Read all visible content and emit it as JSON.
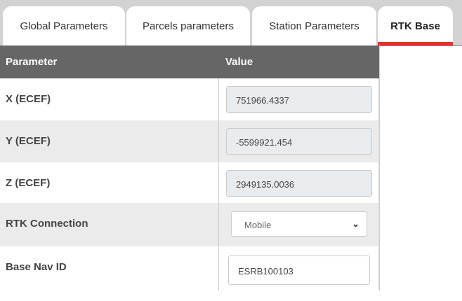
{
  "tabs": [
    {
      "label": "Global Parameters"
    },
    {
      "label": "Parcels parameters"
    },
    {
      "label": "Station Parameters"
    },
    {
      "label": "RTK Base",
      "active": true
    }
  ],
  "accent_color": "#d9372b",
  "table": {
    "headers": {
      "parameter": "Parameter",
      "value": "Value"
    },
    "rows": [
      {
        "label": "X (ECEF)",
        "value": "751966.4337"
      },
      {
        "label": "Y (ECEF)",
        "value": "-5599921.454"
      },
      {
        "label": "Z (ECEF)",
        "value": "2949135.0036"
      },
      {
        "label": "RTK Connection",
        "value": "Mobile",
        "icon": "chevron-down-icon"
      },
      {
        "label": "Base Nav ID",
        "value": "ESRB100103"
      }
    ]
  }
}
